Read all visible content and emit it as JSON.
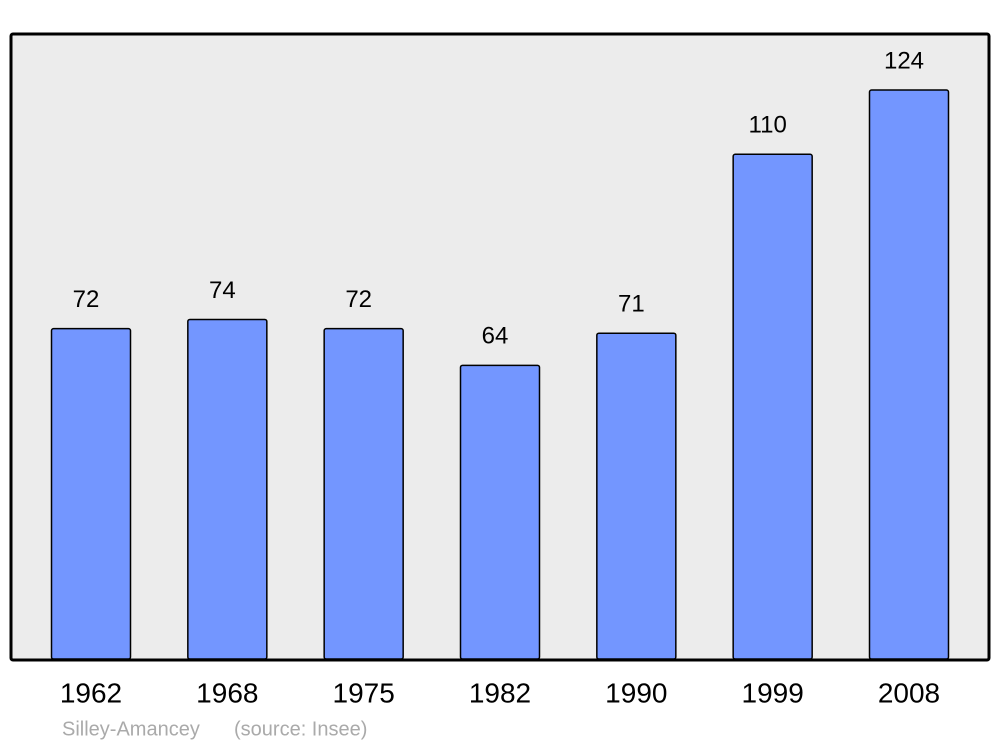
{
  "chart_data": {
    "type": "bar",
    "categories": [
      "1962",
      "1968",
      "1975",
      "1982",
      "1990",
      "1999",
      "2008"
    ],
    "values": [
      72,
      74,
      72,
      64,
      71,
      110,
      124
    ],
    "color": "#7396ff",
    "ylim": [
      0,
      136
    ],
    "caption": "Silley-Amancey",
    "source": "(source: Insee)"
  }
}
